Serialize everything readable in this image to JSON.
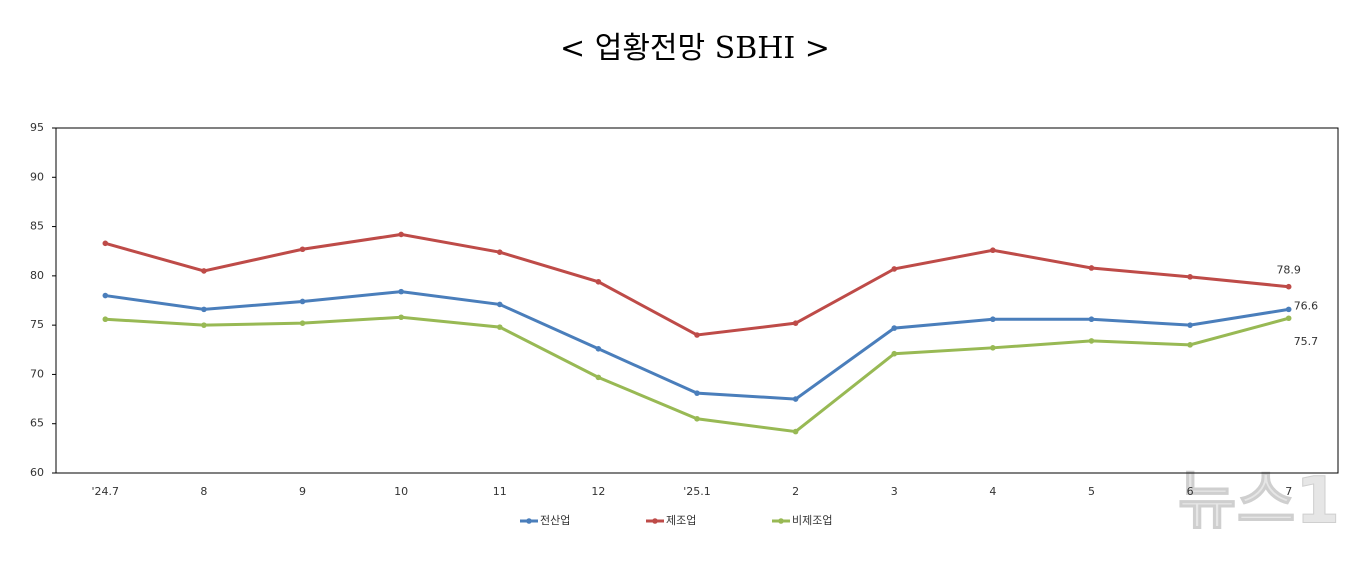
{
  "chart_data": {
    "type": "line",
    "title": "< 업황전망 SBHI >",
    "categories": [
      "'24.7",
      "8",
      "9",
      "10",
      "11",
      "12",
      "'25.1",
      "2",
      "3",
      "4",
      "5",
      "6",
      "7"
    ],
    "series": [
      {
        "name": "전산업",
        "color": "#4a7ebb",
        "values": [
          78.0,
          76.6,
          77.4,
          78.4,
          77.1,
          72.6,
          68.1,
          67.5,
          74.7,
          75.6,
          75.6,
          75.0,
          76.6
        ]
      },
      {
        "name": "제조업",
        "color": "#be4b48",
        "values": [
          83.3,
          80.5,
          82.7,
          84.2,
          82.4,
          79.4,
          74.0,
          75.2,
          80.7,
          82.6,
          80.8,
          79.9,
          78.9
        ]
      },
      {
        "name": "비제조업",
        "color": "#98b954",
        "values": [
          75.6,
          75.0,
          75.2,
          75.8,
          74.8,
          69.7,
          65.5,
          64.2,
          72.1,
          72.7,
          73.4,
          73.0,
          75.7
        ]
      }
    ],
    "ylim": [
      60,
      95
    ],
    "yticks": [
      60,
      65,
      70,
      75,
      80,
      85,
      90,
      95
    ],
    "grid": false,
    "legend": "bottom",
    "watermark": "뉴스1"
  }
}
